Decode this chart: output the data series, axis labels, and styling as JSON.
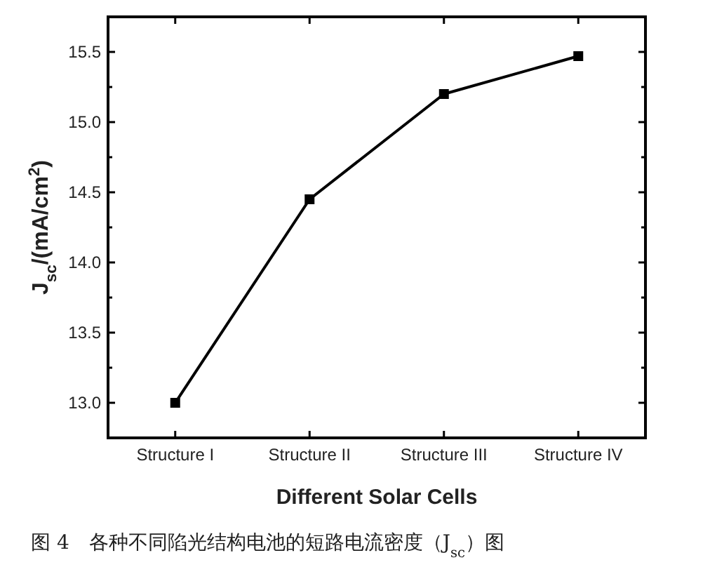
{
  "chart_data": {
    "type": "line",
    "categories": [
      "Structure I",
      "Structure II",
      "Structure III",
      "Structure IV"
    ],
    "values": [
      13.0,
      14.45,
      15.2,
      15.47
    ],
    "color": "#000000",
    "marker": "square",
    "line_style": "solid",
    "xlabel": "Different Solar Cells",
    "ylabel": "J$_{sc}$/(mA/cm$^{2}$)",
    "ylim": [
      12.75,
      15.75
    ],
    "yticks": [
      {
        "value": 13,
        "label": "13.0"
      },
      {
        "value": 13.25,
        "label": null
      },
      13.5,
      {
        "value": 13.75,
        "label": null
      },
      {
        "value": 14,
        "label": "14.0"
      },
      {
        "value": 14.25,
        "label": null
      },
      14.5,
      {
        "value": 14.75,
        "label": null
      },
      {
        "value": 15,
        "label": "15.0"
      },
      {
        "value": 15.25,
        "label": null
      },
      15.5
    ],
    "annotations": [
      "图 4　各种不同陷光结构电池的短路电流密度（J$_{sc}$）图"
    ]
  }
}
